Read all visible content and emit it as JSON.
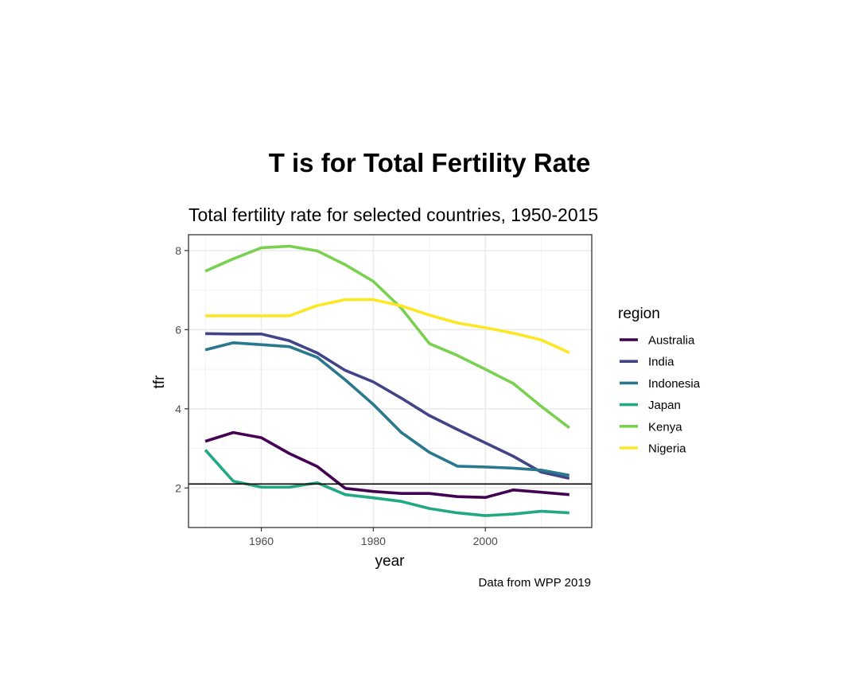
{
  "chart_data": {
    "type": "line",
    "title": "T is for Total Fertility Rate",
    "subtitle": "Total fertility rate for selected countries, 1950-2015",
    "caption": "Data from WPP 2019",
    "xlabel": "year",
    "ylabel": "tfr",
    "xlim": [
      1947,
      2019
    ],
    "ylim": [
      1.0,
      8.4
    ],
    "xticks": [
      1960,
      1980,
      2000
    ],
    "yticks": [
      2,
      4,
      6,
      8
    ],
    "grid": true,
    "legend_title": "region",
    "legend_position": "right",
    "reference_line": {
      "y": 2.1,
      "color": "#000000"
    },
    "x": [
      1950,
      1955,
      1960,
      1965,
      1970,
      1975,
      1980,
      1985,
      1990,
      1995,
      2000,
      2005,
      2010,
      2015
    ],
    "series": [
      {
        "name": "Australia",
        "color": "#440154",
        "values": [
          3.18,
          3.4,
          3.27,
          2.87,
          2.54,
          1.99,
          1.91,
          1.86,
          1.86,
          1.78,
          1.76,
          1.95,
          1.89,
          1.83
        ]
      },
      {
        "name": "India",
        "color": "#414487",
        "values": [
          5.9,
          5.89,
          5.89,
          5.72,
          5.41,
          4.97,
          4.68,
          4.27,
          3.83,
          3.48,
          3.14,
          2.8,
          2.4,
          2.24
        ]
      },
      {
        "name": "Indonesia",
        "color": "#2A788E",
        "values": [
          5.49,
          5.67,
          5.62,
          5.57,
          5.3,
          4.73,
          4.11,
          3.4,
          2.9,
          2.55,
          2.53,
          2.5,
          2.45,
          2.32
        ]
      },
      {
        "name": "Japan",
        "color": "#22A884",
        "values": [
          2.96,
          2.17,
          2.02,
          2.02,
          2.13,
          1.83,
          1.75,
          1.66,
          1.48,
          1.37,
          1.3,
          1.34,
          1.41,
          1.37
        ]
      },
      {
        "name": "Kenya",
        "color": "#7AD151",
        "values": [
          7.48,
          7.79,
          8.07,
          8.11,
          7.99,
          7.64,
          7.22,
          6.54,
          5.65,
          5.35,
          5.0,
          4.64,
          4.06,
          3.52
        ]
      },
      {
        "name": "Nigeria",
        "color": "#FDE725",
        "values": [
          6.35,
          6.35,
          6.35,
          6.35,
          6.61,
          6.76,
          6.76,
          6.6,
          6.37,
          6.17,
          6.05,
          5.91,
          5.74,
          5.42
        ]
      }
    ]
  }
}
